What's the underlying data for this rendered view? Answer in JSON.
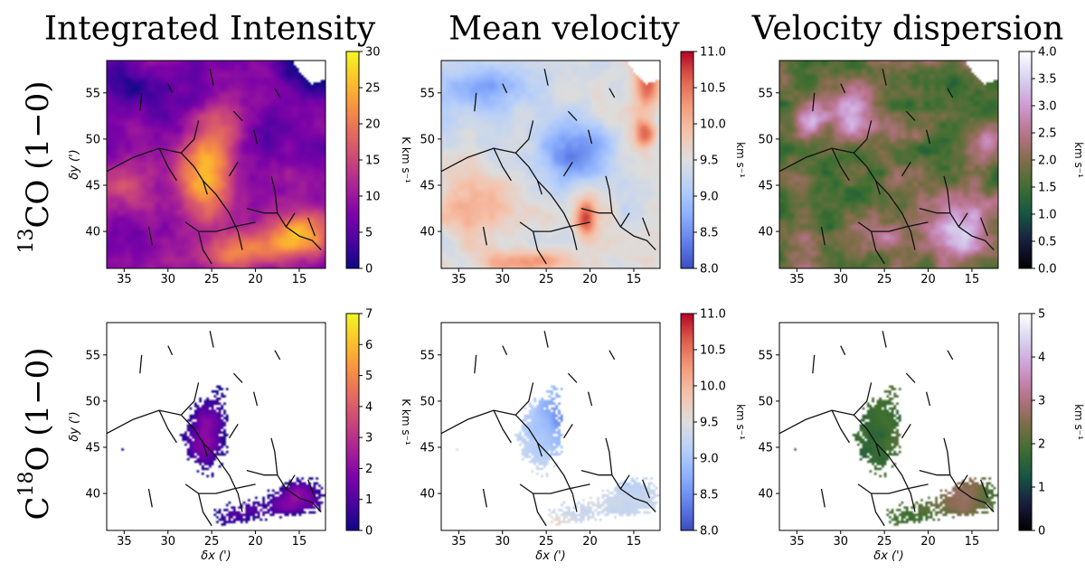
{
  "figure": {
    "column_titles": [
      "Integrated Intensity",
      "Mean velocity",
      "Velocity dispersion"
    ],
    "row_labels": [
      {
        "sup": "13",
        "main": "CO (1−0)",
        "prefix": ""
      },
      {
        "sup": "18",
        "main": "O (1−0)",
        "prefix": "C"
      }
    ]
  },
  "chart_data": [
    {
      "type": "heatmap",
      "panel": "13CO-intensity",
      "row": 0,
      "col": 0,
      "xlabel": "δx (')",
      "ylabel": "δy (')",
      "xlim": [
        37,
        12
      ],
      "ylim": [
        36,
        58.5
      ],
      "xticks": [
        "35",
        "30",
        "25",
        "20",
        "15"
      ],
      "yticks": [
        "40",
        "45",
        "50",
        "55"
      ],
      "colormap": "plasma",
      "colorbar_range": [
        0,
        30
      ],
      "colorbar_ticks": [
        "0",
        "5",
        "10",
        "15",
        "20",
        "25",
        "30"
      ],
      "colorbar_label": "K km s⁻¹",
      "show_ylabel": true,
      "show_xlabel": false,
      "coverage": "full"
    },
    {
      "type": "heatmap",
      "panel": "13CO-velocity",
      "row": 0,
      "col": 1,
      "xlabel": "δx (')",
      "ylabel": "δy (')",
      "xlim": [
        37,
        12
      ],
      "ylim": [
        36,
        58.5
      ],
      "xticks": [
        "35",
        "30",
        "25",
        "20",
        "15"
      ],
      "yticks": [
        "40",
        "45",
        "50",
        "55"
      ],
      "colormap": "coolwarm",
      "colorbar_range": [
        8.0,
        11.0
      ],
      "colorbar_ticks": [
        "8.0",
        "8.5",
        "9.0",
        "9.5",
        "10.0",
        "10.5",
        "11.0"
      ],
      "colorbar_label": "km s⁻¹",
      "show_ylabel": false,
      "show_xlabel": false,
      "coverage": "full"
    },
    {
      "type": "heatmap",
      "panel": "13CO-dispersion",
      "row": 0,
      "col": 2,
      "xlabel": "δx (')",
      "ylabel": "δy (')",
      "xlim": [
        37,
        12
      ],
      "ylim": [
        36,
        58.5
      ],
      "xticks": [
        "35",
        "30",
        "25",
        "20",
        "15"
      ],
      "yticks": [
        "40",
        "45",
        "50",
        "55"
      ],
      "colormap": "cubehelix",
      "colorbar_range": [
        0.0,
        4.0
      ],
      "colorbar_ticks": [
        "0.0",
        "0.5",
        "1.0",
        "1.5",
        "2.0",
        "2.5",
        "3.0",
        "3.5",
        "4.0"
      ],
      "colorbar_label": "km s⁻¹",
      "show_ylabel": false,
      "show_xlabel": false,
      "coverage": "full"
    },
    {
      "type": "heatmap",
      "panel": "C18O-intensity",
      "row": 1,
      "col": 0,
      "xlabel": "δx (')",
      "ylabel": "δy (')",
      "xlim": [
        37,
        12
      ],
      "ylim": [
        36,
        58.5
      ],
      "xticks": [
        "35",
        "30",
        "25",
        "20",
        "15"
      ],
      "yticks": [
        "40",
        "45",
        "50",
        "55"
      ],
      "colormap": "plasma",
      "colorbar_range": [
        0,
        7
      ],
      "colorbar_ticks": [
        "0",
        "1",
        "2",
        "3",
        "4",
        "5",
        "6",
        "7"
      ],
      "colorbar_label": "K km s⁻¹",
      "show_ylabel": true,
      "show_xlabel": true,
      "coverage": "masked"
    },
    {
      "type": "heatmap",
      "panel": "C18O-velocity",
      "row": 1,
      "col": 1,
      "xlabel": "δx (')",
      "ylabel": "δy (')",
      "xlim": [
        37,
        12
      ],
      "ylim": [
        36,
        58.5
      ],
      "xticks": [
        "35",
        "30",
        "25",
        "20",
        "15"
      ],
      "yticks": [
        "40",
        "45",
        "50",
        "55"
      ],
      "colormap": "coolwarm",
      "colorbar_range": [
        8.0,
        11.0
      ],
      "colorbar_ticks": [
        "8.0",
        "8.5",
        "9.0",
        "9.5",
        "10.0",
        "10.5",
        "11.0"
      ],
      "colorbar_label": "km s⁻¹",
      "show_ylabel": false,
      "show_xlabel": true,
      "coverage": "masked"
    },
    {
      "type": "heatmap",
      "panel": "C18O-dispersion",
      "row": 1,
      "col": 2,
      "xlabel": "δx (')",
      "ylabel": "δy (')",
      "xlim": [
        37,
        12
      ],
      "ylim": [
        36,
        58.5
      ],
      "xticks": [
        "35",
        "30",
        "25",
        "20",
        "15"
      ],
      "yticks": [
        "40",
        "45",
        "50",
        "55"
      ],
      "colormap": "cubehelix",
      "colorbar_range": [
        0,
        5
      ],
      "colorbar_ticks": [
        "0",
        "1",
        "2",
        "3",
        "4",
        "5"
      ],
      "colorbar_label": "km s⁻¹",
      "show_ylabel": false,
      "show_xlabel": true,
      "coverage": "masked"
    }
  ],
  "filaments": [
    [
      [
        37,
        46.5
      ],
      [
        34,
        48
      ],
      [
        31,
        49
      ],
      [
        28.5,
        48.5
      ],
      [
        27,
        47
      ],
      [
        26,
        45.5
      ],
      [
        25.5,
        44
      ]
    ],
    [
      [
        28.5,
        48.5
      ],
      [
        27,
        50
      ],
      [
        26.5,
        52
      ]
    ],
    [
      [
        26,
        45.5
      ],
      [
        24.5,
        44
      ],
      [
        23,
        42
      ],
      [
        22,
        40
      ],
      [
        21.5,
        38
      ]
    ],
    [
      [
        31,
        49
      ],
      [
        30,
        47
      ],
      [
        29,
        45.5
      ]
    ],
    [
      [
        28,
        41
      ],
      [
        26.5,
        40
      ],
      [
        24.5,
        40
      ],
      [
        22.5,
        40.5
      ],
      [
        20,
        41
      ]
    ],
    [
      [
        26.5,
        40
      ],
      [
        26,
        38
      ],
      [
        25,
        36.5
      ]
    ],
    [
      [
        21,
        42.5
      ],
      [
        19,
        42
      ],
      [
        17.5,
        42
      ],
      [
        16.5,
        40.5
      ],
      [
        15,
        39.5
      ],
      [
        13.5,
        39
      ],
      [
        12.5,
        38
      ]
    ],
    [
      [
        17.5,
        42
      ],
      [
        17.8,
        44.5
      ],
      [
        18.2,
        46
      ]
    ],
    [
      [
        16.5,
        40.5
      ],
      [
        15.5,
        42
      ]
    ],
    [
      [
        23,
        46
      ],
      [
        22,
        47.5
      ]
    ],
    [
      [
        33,
        55
      ],
      [
        33.2,
        53
      ]
    ],
    [
      [
        30,
        56
      ],
      [
        29.5,
        55
      ]
    ],
    [
      [
        25.2,
        57.6
      ],
      [
        24.8,
        55.8
      ]
    ],
    [
      [
        22.5,
        53
      ],
      [
        21.5,
        52
      ]
    ],
    [
      [
        17.8,
        55.5
      ],
      [
        17.2,
        54.5
      ]
    ],
    [
      [
        20.2,
        51
      ],
      [
        19.8,
        49.5
      ]
    ],
    [
      [
        32.2,
        40.5
      ],
      [
        31.8,
        38.5
      ]
    ],
    [
      [
        14,
        41.5
      ],
      [
        13.2,
        39.5
      ]
    ]
  ]
}
